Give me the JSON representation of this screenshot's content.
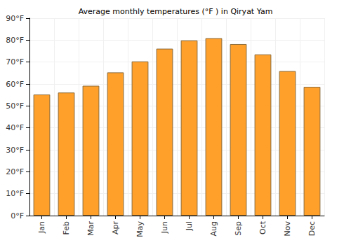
{
  "chart_data": {
    "type": "bar",
    "title": "Average monthly temperatures (°F ) in Qiryat Yam",
    "categories": [
      "Jan",
      "Feb",
      "Mar",
      "Apr",
      "May",
      "Jun",
      "Jul",
      "Aug",
      "Sep",
      "Oct",
      "Nov",
      "Dec"
    ],
    "values": [
      55.2,
      56.1,
      59.2,
      65.3,
      70.3,
      76.1,
      79.9,
      80.9,
      78.2,
      73.5,
      65.9,
      58.7
    ],
    "color": "#ffa02a",
    "ylim": [
      0,
      90
    ],
    "yticks": [
      {
        "value": 0,
        "label": "0°F"
      },
      {
        "value": 10,
        "label": "10°F"
      },
      {
        "value": 20,
        "label": "20°F"
      },
      {
        "value": 30,
        "label": "30°F"
      },
      {
        "value": 40,
        "label": "40°F"
      },
      {
        "value": 50,
        "label": "50°F"
      },
      {
        "value": 60,
        "label": "60°F"
      },
      {
        "value": 70,
        "label": "70°F"
      },
      {
        "value": 80,
        "label": "80°F"
      },
      {
        "value": 90,
        "label": "90°F"
      }
    ],
    "grid": true
  }
}
